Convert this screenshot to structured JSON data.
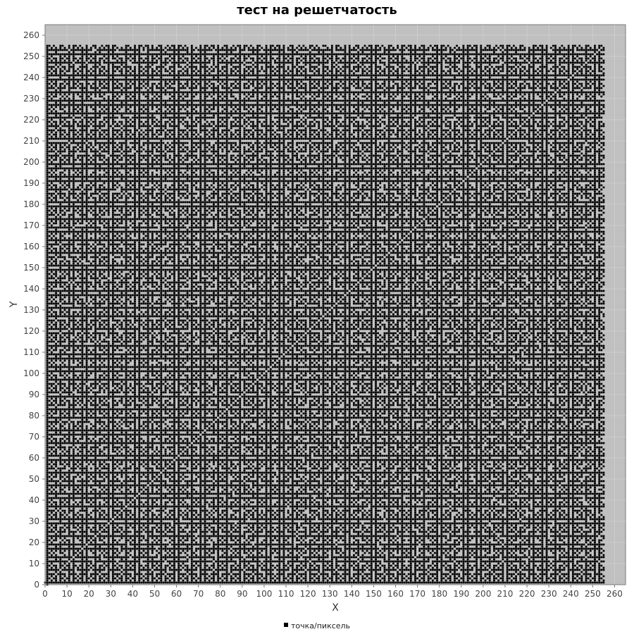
{
  "chart_data": {
    "type": "scatter",
    "title": "тест на решетчатость",
    "xlabel": "X",
    "ylabel": "Y",
    "xlim": [
      0,
      265
    ],
    "ylim": [
      0,
      265
    ],
    "x_ticks": [
      0,
      10,
      20,
      30,
      40,
      50,
      60,
      70,
      80,
      90,
      100,
      110,
      120,
      130,
      140,
      150,
      160,
      170,
      180,
      190,
      200,
      210,
      220,
      230,
      240,
      250,
      260
    ],
    "y_ticks": [
      0,
      10,
      20,
      30,
      40,
      50,
      60,
      70,
      80,
      90,
      100,
      110,
      120,
      130,
      140,
      150,
      160,
      170,
      180,
      190,
      200,
      210,
      220,
      230,
      240,
      250,
      260
    ],
    "grid": true,
    "background_color": "#c0c0c0",
    "point_color": "#000000",
    "legend": {
      "placement": "bottom-center",
      "entries": [
        "точка/пиксель"
      ]
    },
    "series": [
      {
        "name": "точка/пиксель",
        "marker": "square",
        "point_grid": {
          "x_range": [
            0,
            255
          ],
          "y_range": [
            0,
            255
          ],
          "step": 1
        }
      }
    ]
  }
}
